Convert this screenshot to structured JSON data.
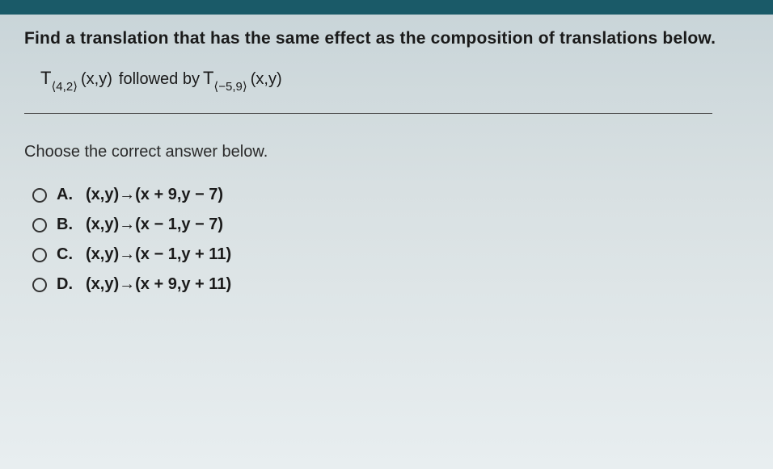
{
  "colors": {
    "topbar": "#1a5a68",
    "text": "#1a1a1a",
    "divider": "#4a4a4a"
  },
  "prompt": "Find a translation that has the same effect as the composition of translations below.",
  "expression": {
    "t1_sub": "⟨4,2⟩",
    "t1_arg": "(x,y)",
    "middle": " followed by ",
    "t2_sub": "⟨−5,9⟩",
    "t2_arg": "(x,y)"
  },
  "choose": "Choose the correct answer below.",
  "options": [
    {
      "letter": "A.",
      "text": "(x,y)→(x + 9,y − 7)"
    },
    {
      "letter": "B.",
      "text": "(x,y)→(x − 1,y − 7)"
    },
    {
      "letter": "C.",
      "text": "(x,y)→(x − 1,y + 11)"
    },
    {
      "letter": "D.",
      "text": "(x,y)→(x + 9,y + 11)"
    }
  ]
}
